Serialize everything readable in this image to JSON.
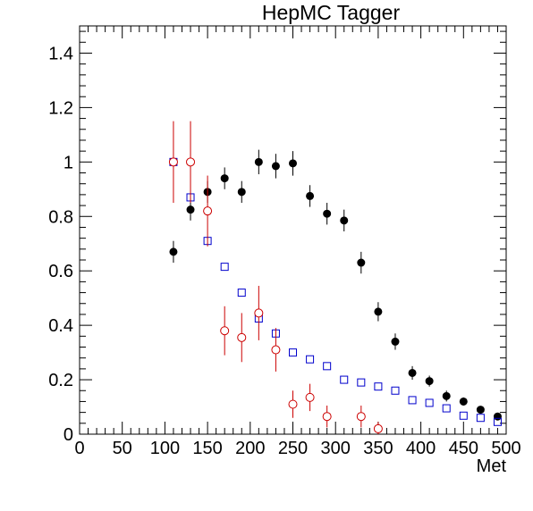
{
  "chart_data": {
    "type": "scatter",
    "title": "HepMC Tagger",
    "xlabel": "Met",
    "ylabel": "",
    "xlim": [
      0,
      500
    ],
    "ylim": [
      0,
      1.5
    ],
    "x_ticks": [
      "0",
      "50",
      "100",
      "150",
      "200",
      "250",
      "300",
      "350",
      "400",
      "450",
      "500"
    ],
    "y_ticks": [
      "0",
      "0.2",
      "0.4",
      "0.6",
      "0.8",
      "1",
      "1.2",
      "1.4"
    ],
    "grid": false,
    "series": [
      {
        "marker": "filled-circle",
        "color": "#000000",
        "x": [
          110,
          130,
          150,
          170,
          190,
          210,
          230,
          250,
          270,
          290,
          310,
          330,
          350,
          370,
          390,
          410,
          430,
          450,
          470,
          490
        ],
        "y": [
          0.67,
          0.825,
          0.89,
          0.94,
          0.89,
          1.0,
          0.985,
          0.995,
          0.875,
          0.81,
          0.785,
          0.63,
          0.45,
          0.34,
          0.225,
          0.195,
          0.14,
          0.12,
          0.09,
          0.065
        ],
        "err": [
          0.04,
          0.04,
          0.04,
          0.04,
          0.04,
          0.045,
          0.045,
          0.045,
          0.04,
          0.04,
          0.04,
          0.04,
          0.035,
          0.03,
          0.025,
          0.02,
          0.02,
          0.015,
          0.012,
          0.01
        ]
      },
      {
        "marker": "open-square",
        "color": "#0000cc",
        "x": [
          110,
          130,
          150,
          170,
          190,
          210,
          230,
          250,
          270,
          290,
          310,
          330,
          350,
          370,
          390,
          410,
          430,
          450,
          470,
          490
        ],
        "y": [
          1.0,
          0.87,
          0.71,
          0.615,
          0.52,
          0.425,
          0.37,
          0.3,
          0.275,
          0.25,
          0.2,
          0.19,
          0.175,
          0.16,
          0.125,
          0.115,
          0.095,
          0.068,
          0.06,
          0.045
        ],
        "err": [
          0,
          0,
          0,
          0,
          0,
          0,
          0,
          0,
          0,
          0,
          0,
          0,
          0,
          0,
          0,
          0,
          0,
          0,
          0,
          0
        ]
      },
      {
        "marker": "open-circle",
        "color": "#cc0000",
        "x": [
          110,
          130,
          150,
          170,
          190,
          210,
          230,
          250,
          270,
          290,
          330,
          350
        ],
        "y": [
          1.0,
          1.0,
          0.82,
          0.38,
          0.355,
          0.445,
          0.31,
          0.11,
          0.135,
          0.065,
          0.065,
          0.02
        ],
        "err": [
          0.15,
          0.15,
          0.13,
          0.09,
          0.09,
          0.1,
          0.08,
          0.05,
          0.05,
          0.04,
          0.04,
          0.025
        ]
      }
    ]
  }
}
